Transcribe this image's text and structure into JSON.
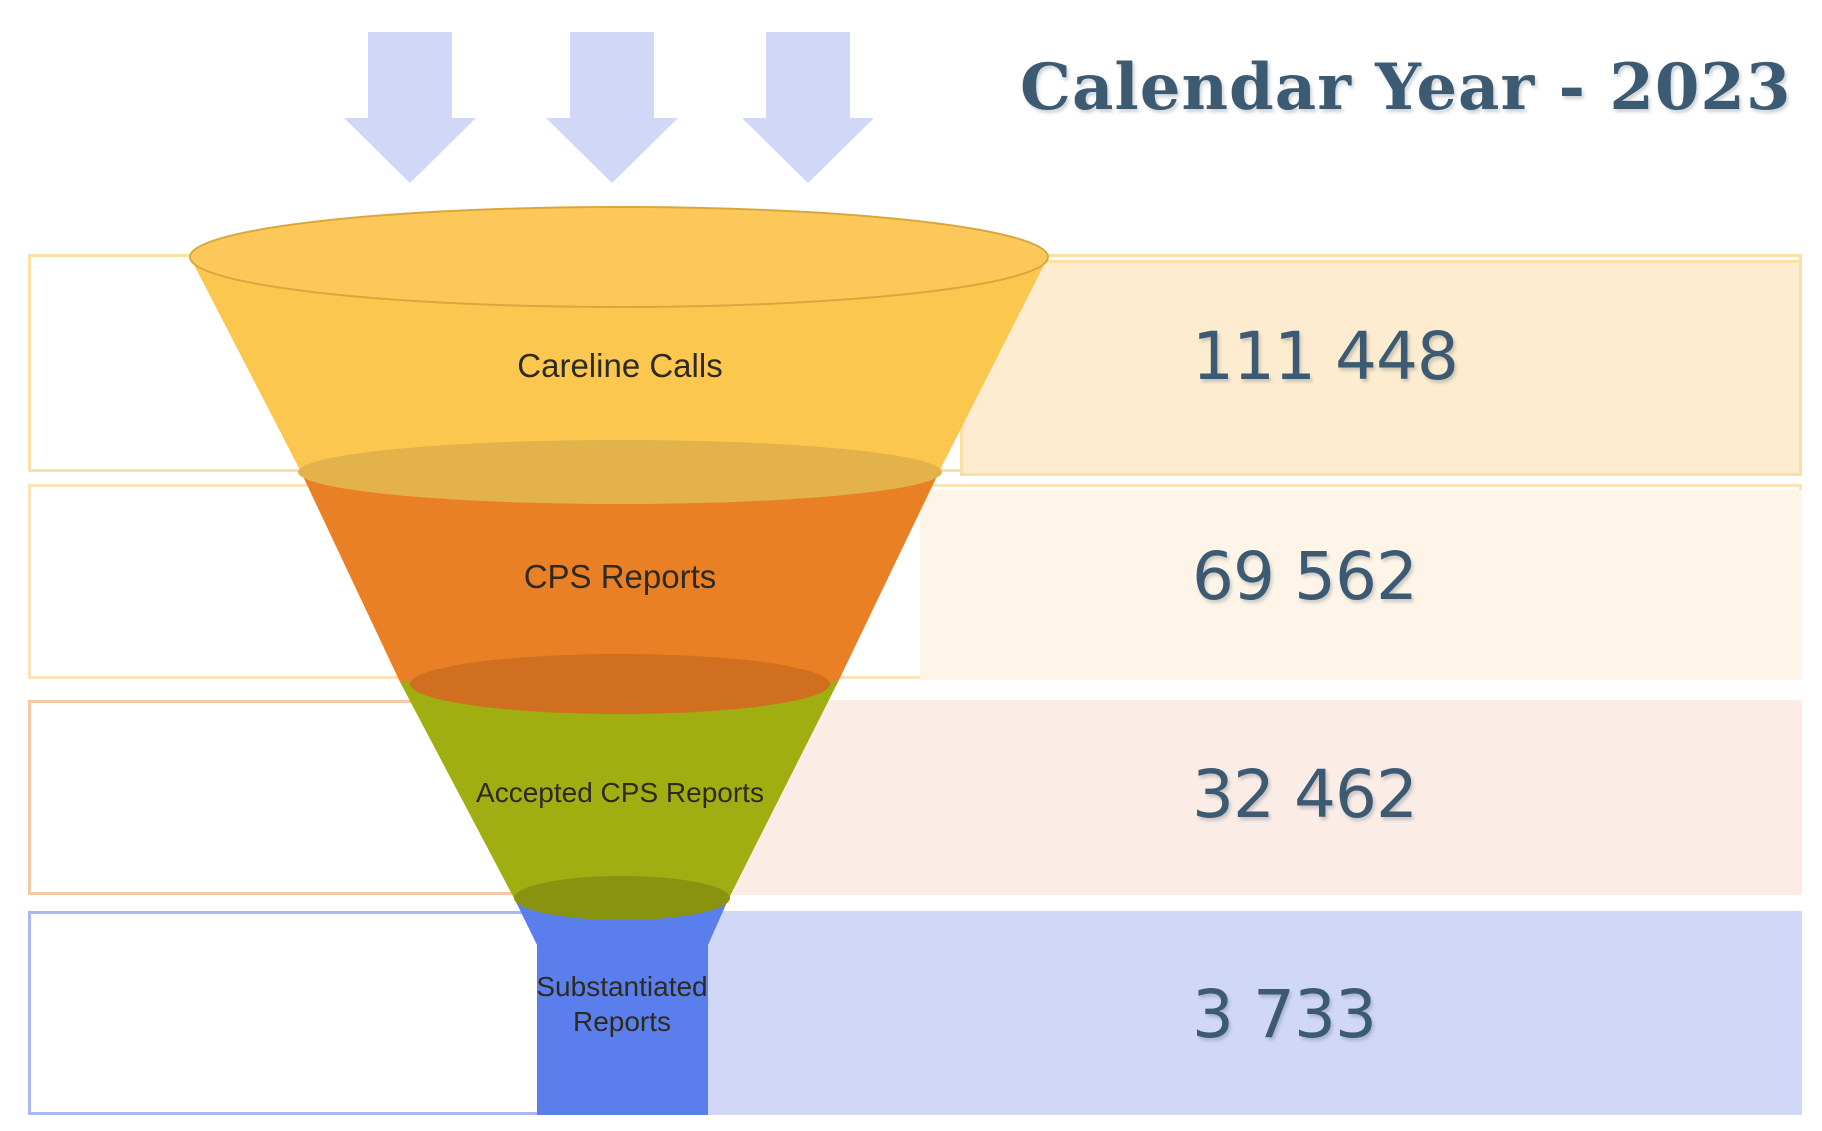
{
  "title": "Calendar Year - 2023",
  "stages": [
    {
      "label": "Careline Calls",
      "value": "111 448",
      "color": "#fcc74f",
      "band_color": "#fdecd0",
      "outline_color": "#fbe0a6"
    },
    {
      "label": "CPS Reports",
      "value": "69 562",
      "color": "#e98025",
      "band_color": "#fef5e8",
      "outline_color": "#fce3b8"
    },
    {
      "label": "Accepted CPS Reports",
      "value": "32 462",
      "color": "#a0ae12",
      "band_color": "#fbece6",
      "outline_color": "#f5c9a4"
    },
    {
      "label": "Substantiated Reports",
      "label_lines": [
        "Substantiated",
        "Reports"
      ],
      "value": "3 733",
      "color": "#5a7fec",
      "band_color": "#d1d8f7",
      "outline_color": "#a9b8f1"
    }
  ],
  "arrows": {
    "count": 3,
    "color": "#d1d7f6",
    "icon": "down-arrow-icon"
  }
}
